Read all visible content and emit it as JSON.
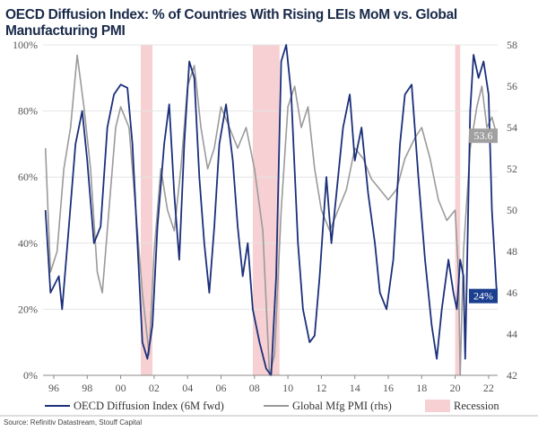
{
  "title": "OECD Diffusion Index: % of Countries With Rising LEIs MoM vs. Global Manufacturing PMI",
  "source": "Source: Refinitiv Datastream, Stouff Capital",
  "chart_data": {
    "type": "line",
    "title": "OECD Diffusion Index: % of Countries With Rising LEIs MoM vs. Global Manufacturing PMI",
    "x_ticks": [
      "96",
      "98",
      "00",
      "02",
      "04",
      "06",
      "08",
      "10",
      "12",
      "14",
      "16",
      "18",
      "20",
      "22"
    ],
    "xlim": [
      1995.3,
      2023.0
    ],
    "y_left": {
      "ticks": [
        "0%",
        "20%",
        "40%",
        "60%",
        "80%",
        "100%"
      ],
      "ylim": [
        0,
        100
      ]
    },
    "y_right": {
      "ticks": [
        "42",
        "44",
        "46",
        "48",
        "50",
        "52",
        "54",
        "56",
        "58"
      ],
      "ylim": [
        42,
        58
      ]
    },
    "grid": true,
    "legend_position": "bottom",
    "recessions": [
      [
        2001.2,
        2001.9
      ],
      [
        2007.9,
        2009.5
      ],
      [
        2020.0,
        2020.3
      ]
    ],
    "series": [
      {
        "name": "OECD Diffusion Index (6M fwd)",
        "axis": "left",
        "color": "#1b2f7a",
        "end_label": "24%",
        "x": [
          1995.5,
          1995.8,
          1996.3,
          1996.5,
          1996.9,
          1997.3,
          1997.7,
          1998.0,
          1998.4,
          1998.8,
          1999.2,
          1999.6,
          2000.0,
          2000.4,
          2000.7,
          2001.0,
          2001.3,
          2001.6,
          2001.9,
          2002.2,
          2002.6,
          2002.9,
          2003.2,
          2003.5,
          2003.8,
          2004.1,
          2004.4,
          2004.7,
          2005.0,
          2005.3,
          2005.6,
          2005.9,
          2006.3,
          2006.7,
          2007.0,
          2007.3,
          2007.6,
          2007.9,
          2008.3,
          2008.7,
          2009.0,
          2009.3,
          2009.6,
          2009.9,
          2010.2,
          2010.6,
          2010.9,
          2011.3,
          2011.6,
          2011.9,
          2012.3,
          2012.6,
          2012.9,
          2013.3,
          2013.7,
          2014.0,
          2014.4,
          2014.8,
          2015.2,
          2015.5,
          2015.9,
          2016.3,
          2016.7,
          2017.0,
          2017.4,
          2017.8,
          2018.2,
          2018.6,
          2018.9,
          2019.2,
          2019.6,
          2019.9,
          2020.1,
          2020.3,
          2020.5,
          2020.6,
          2020.9,
          2021.1,
          2021.4,
          2021.7,
          2022.0,
          2022.2,
          2022.5
        ],
        "y": [
          50,
          25,
          30,
          20,
          45,
          70,
          80,
          65,
          40,
          45,
          75,
          85,
          88,
          87,
          70,
          40,
          10,
          5,
          15,
          45,
          70,
          82,
          55,
          35,
          70,
          95,
          90,
          60,
          40,
          25,
          45,
          70,
          82,
          65,
          45,
          30,
          40,
          20,
          10,
          2,
          0,
          30,
          95,
          100,
          85,
          40,
          20,
          10,
          12,
          30,
          60,
          40,
          55,
          75,
          85,
          65,
          75,
          55,
          40,
          25,
          20,
          35,
          70,
          85,
          88,
          60,
          35,
          15,
          5,
          20,
          35,
          25,
          20,
          35,
          30,
          5,
          80,
          97,
          90,
          95,
          85,
          50,
          24
        ]
      },
      {
        "name": "Global Mfg PMI (rhs)",
        "axis": "right",
        "color": "#9a9a9a",
        "end_label": "53.6",
        "x": [
          1995.5,
          1995.8,
          1996.2,
          1996.6,
          1997.0,
          1997.4,
          1997.8,
          1998.2,
          1998.6,
          1998.9,
          1999.3,
          1999.7,
          2000.0,
          2000.5,
          2000.9,
          2001.3,
          2001.7,
          2002.0,
          2002.4,
          2002.8,
          2003.2,
          2003.6,
          2004.0,
          2004.4,
          2004.8,
          2005.2,
          2005.6,
          2006.0,
          2006.5,
          2007.0,
          2007.5,
          2008.0,
          2008.5,
          2008.9,
          2009.2,
          2009.6,
          2010.0,
          2010.4,
          2010.8,
          2011.2,
          2011.6,
          2012.0,
          2012.5,
          2013.0,
          2013.5,
          2014.0,
          2014.5,
          2015.0,
          2015.5,
          2016.0,
          2016.5,
          2017.0,
          2017.6,
          2018.0,
          2018.5,
          2019.0,
          2019.5,
          2020.0,
          2020.2,
          2020.3,
          2020.5,
          2020.9,
          2021.3,
          2021.6,
          2021.9,
          2022.2,
          2022.5
        ],
        "y": [
          53,
          47,
          48,
          52,
          54,
          57.5,
          55,
          52,
          47,
          46,
          50,
          54,
          55,
          54,
          50,
          46,
          43,
          48,
          52,
          50,
          49,
          52,
          56,
          57,
          54,
          52,
          53,
          55,
          54,
          53,
          54,
          52,
          49,
          42,
          43,
          50,
          55,
          56,
          54,
          55,
          52,
          50,
          49,
          50,
          51,
          53,
          52.5,
          51.5,
          51,
          50.5,
          51,
          52.5,
          53.5,
          54,
          52.5,
          50.5,
          49.5,
          50,
          47,
          42,
          48,
          53,
          55,
          56,
          54,
          54.5,
          53.6
        ]
      }
    ],
    "legend": [
      "OECD Diffusion Index (6M fwd)",
      "Global Mfg PMI (rhs)",
      "Recession"
    ]
  }
}
